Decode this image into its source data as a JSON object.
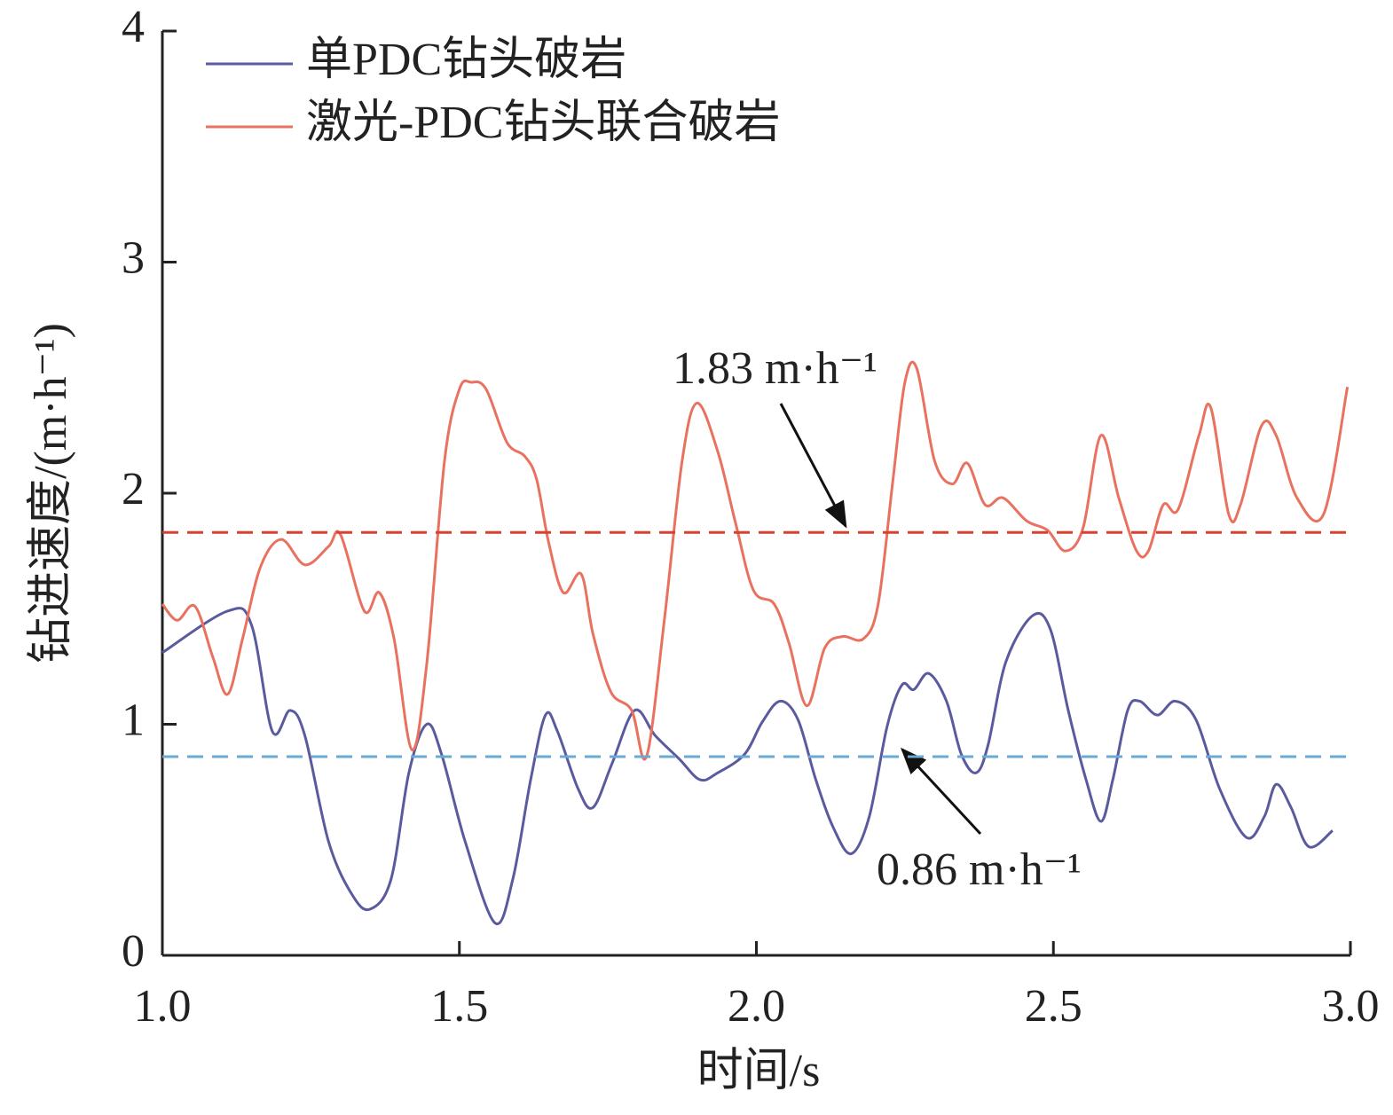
{
  "chart_data": {
    "type": "line",
    "xlabel": "时间/s",
    "ylabel": "钻进速度/(m·h⁻¹)",
    "xlim": [
      1,
      3
    ],
    "ylim": [
      0,
      4
    ],
    "xticks": [
      {
        "value": 1,
        "label": "1.0"
      },
      1.5,
      {
        "value": 2,
        "label": "2.0"
      },
      2.5,
      {
        "value": 3,
        "label": "3.0"
      }
    ],
    "yticks": [
      0,
      1,
      2,
      3,
      4
    ],
    "legend": "upper left",
    "series": [
      {
        "name": "单PDC钻头破岩",
        "color": "#5a5a9e",
        "x": [
          1.0,
          1.11,
          1.15,
          1.185,
          1.215,
          1.24,
          1.28,
          1.32,
          1.35,
          1.385,
          1.415,
          1.445,
          1.47,
          1.51,
          1.56,
          1.59,
          1.62,
          1.645,
          1.665,
          1.7,
          1.725,
          1.757,
          1.795,
          1.83,
          1.87,
          1.905,
          1.935,
          1.98,
          2.01,
          2.04,
          2.07,
          2.1,
          2.13,
          2.16,
          2.19,
          2.22,
          2.245,
          2.265,
          2.29,
          2.32,
          2.345,
          2.37,
          2.39,
          2.42,
          2.465,
          2.495,
          2.525,
          2.555,
          2.58,
          2.6,
          2.625,
          2.645,
          2.675,
          2.705,
          2.74,
          2.78,
          2.825,
          2.855,
          2.875,
          2.9,
          2.93,
          2.97
        ],
        "values": [
          1.31,
          1.49,
          1.43,
          0.97,
          1.06,
          0.95,
          0.49,
          0.26,
          0.2,
          0.33,
          0.79,
          1.0,
          0.87,
          0.49,
          0.14,
          0.33,
          0.76,
          1.04,
          0.97,
          0.72,
          0.64,
          0.83,
          1.06,
          0.95,
          0.85,
          0.76,
          0.79,
          0.87,
          1.01,
          1.1,
          1.02,
          0.76,
          0.55,
          0.44,
          0.6,
          0.99,
          1.17,
          1.15,
          1.22,
          1.1,
          0.87,
          0.79,
          0.91,
          1.27,
          1.47,
          1.41,
          1.06,
          0.76,
          0.58,
          0.76,
          1.06,
          1.1,
          1.04,
          1.1,
          1.02,
          0.72,
          0.51,
          0.6,
          0.74,
          0.64,
          0.47,
          0.54
        ]
      },
      {
        "name": "激光-PDC钻头联合破岩",
        "color": "#e8725f",
        "x": [
          1.0,
          1.025,
          1.055,
          1.085,
          1.11,
          1.135,
          1.165,
          1.2,
          1.24,
          1.28,
          1.3,
          1.34,
          1.365,
          1.39,
          1.42,
          1.445,
          1.475,
          1.5,
          1.52,
          1.545,
          1.58,
          1.61,
          1.63,
          1.65,
          1.675,
          1.705,
          1.725,
          1.755,
          1.79,
          1.815,
          1.845,
          1.875,
          1.9,
          1.935,
          1.965,
          1.995,
          2.03,
          2.055,
          2.085,
          2.115,
          2.145,
          2.18,
          2.205,
          2.23,
          2.25,
          2.27,
          2.3,
          2.33,
          2.355,
          2.385,
          2.415,
          2.455,
          2.49,
          2.52,
          2.55,
          2.58,
          2.61,
          2.64,
          2.66,
          2.685,
          2.71,
          2.745,
          2.765,
          2.795,
          2.815,
          2.85,
          2.875,
          2.91,
          2.955,
          2.995
        ],
        "values": [
          1.52,
          1.45,
          1.51,
          1.29,
          1.13,
          1.37,
          1.68,
          1.8,
          1.69,
          1.77,
          1.82,
          1.49,
          1.57,
          1.37,
          0.89,
          1.26,
          2.14,
          2.45,
          2.48,
          2.45,
          2.22,
          2.16,
          2.06,
          1.79,
          1.57,
          1.65,
          1.39,
          1.14,
          1.06,
          0.86,
          1.45,
          2.14,
          2.39,
          2.18,
          1.87,
          1.58,
          1.52,
          1.35,
          1.08,
          1.33,
          1.38,
          1.37,
          1.52,
          2.06,
          2.48,
          2.54,
          2.14,
          2.04,
          2.13,
          1.95,
          1.98,
          1.88,
          1.84,
          1.75,
          1.85,
          2.25,
          1.98,
          1.75,
          1.75,
          1.95,
          1.93,
          2.25,
          2.37,
          1.91,
          1.95,
          2.29,
          2.25,
          1.98,
          1.91,
          2.46
        ]
      }
    ],
    "reference_lines": [
      {
        "value": 1.83,
        "label": "1.83 m·h⁻¹",
        "color": "#d9402f"
      },
      {
        "value": 0.86,
        "label": "0.86 m·h⁻¹",
        "color": "#6aaad6"
      }
    ]
  }
}
